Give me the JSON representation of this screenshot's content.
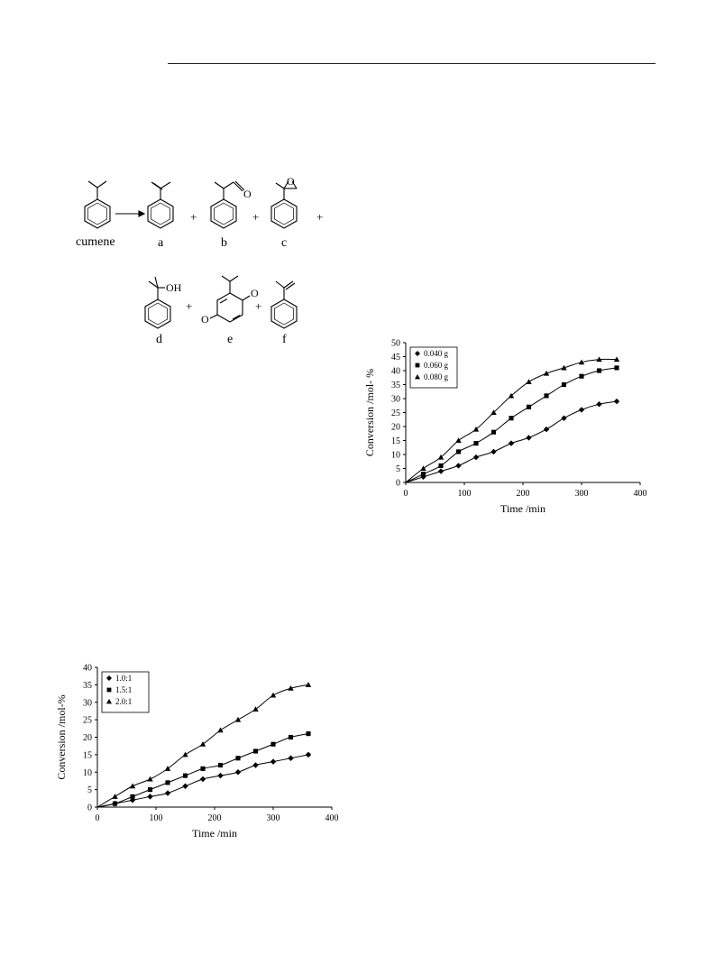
{
  "scheme": {
    "reactant_label": "cumene",
    "product_labels": [
      "a",
      "b",
      "c",
      "d",
      "e",
      "f"
    ],
    "plus": "+",
    "substituent_labels": {
      "b": "O",
      "c": "O",
      "d": "OH",
      "e_top": "O",
      "e_bottom": "O"
    }
  },
  "chart_data": [
    {
      "type": "scatter",
      "xlabel": "Time /min",
      "ylabel": "Conversion /mol- %",
      "xlim": [
        0,
        400
      ],
      "ylim": [
        0,
        50
      ],
      "xticks": [
        0,
        100,
        200,
        300,
        400
      ],
      "yticks": [
        0,
        5,
        10,
        15,
        20,
        25,
        30,
        35,
        40,
        45,
        50
      ],
      "legend_position": "top-left",
      "grid": false,
      "series": [
        {
          "name": "0.040 g",
          "marker": "diamond",
          "x": [
            0,
            30,
            60,
            90,
            120,
            150,
            180,
            210,
            240,
            270,
            300,
            330,
            360
          ],
          "y": [
            0,
            2,
            4,
            6,
            9,
            11,
            14,
            16,
            19,
            23,
            26,
            28,
            29
          ]
        },
        {
          "name": "0.060 g",
          "marker": "square",
          "x": [
            0,
            30,
            60,
            90,
            120,
            150,
            180,
            210,
            240,
            270,
            300,
            330,
            360
          ],
          "y": [
            0,
            3,
            6,
            11,
            14,
            18,
            23,
            27,
            31,
            35,
            38,
            40,
            41
          ]
        },
        {
          "name": "0.080 g",
          "marker": "triangle",
          "x": [
            0,
            30,
            60,
            90,
            120,
            150,
            180,
            210,
            240,
            270,
            300,
            330,
            360
          ],
          "y": [
            0,
            5,
            9,
            15,
            19,
            25,
            31,
            36,
            39,
            41,
            43,
            44,
            44
          ]
        }
      ]
    },
    {
      "type": "scatter",
      "xlabel": "Time /min",
      "ylabel": "Conversion /mol-%",
      "xlim": [
        0,
        400
      ],
      "ylim": [
        0,
        40
      ],
      "xticks": [
        0,
        100,
        200,
        300,
        400
      ],
      "yticks": [
        0,
        5,
        10,
        15,
        20,
        25,
        30,
        35,
        40
      ],
      "legend_position": "top-left",
      "grid": false,
      "series": [
        {
          "name": "1.0:1",
          "marker": "diamond",
          "x": [
            0,
            30,
            60,
            90,
            120,
            150,
            180,
            210,
            240,
            270,
            300,
            330,
            360
          ],
          "y": [
            0,
            1,
            2,
            3,
            4,
            6,
            8,
            9,
            10,
            12,
            13,
            14,
            15
          ]
        },
        {
          "name": "1.5:1",
          "marker": "square",
          "x": [
            0,
            30,
            60,
            90,
            120,
            150,
            180,
            210,
            240,
            270,
            300,
            330,
            360
          ],
          "y": [
            0,
            1,
            3,
            5,
            7,
            9,
            11,
            12,
            14,
            16,
            18,
            20,
            21
          ]
        },
        {
          "name": "2.0:1",
          "marker": "triangle",
          "x": [
            0,
            30,
            60,
            90,
            120,
            150,
            180,
            210,
            240,
            270,
            300,
            330,
            360
          ],
          "y": [
            0,
            3,
            6,
            8,
            11,
            15,
            18,
            22,
            25,
            28,
            32,
            34,
            35
          ]
        }
      ]
    }
  ]
}
